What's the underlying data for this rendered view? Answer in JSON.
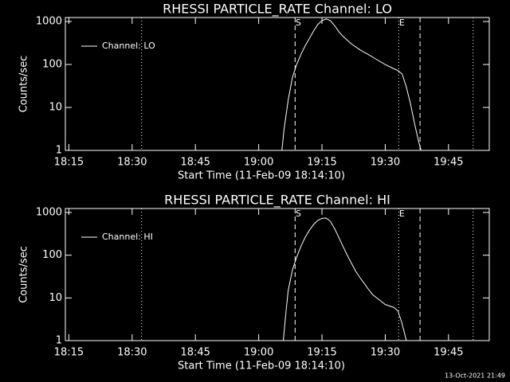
{
  "chart_data": [
    {
      "type": "line",
      "title": "RHESSI PARTICLE_RATE Channel: LO",
      "xlabel": "Start Time (11-Feb-09 18:14:10)",
      "ylabel": "Counts/sec",
      "log_y": true,
      "xlim": [
        "18:14:10",
        "19:54:40"
      ],
      "ylim": [
        1,
        1240
      ],
      "xticks": [
        "18:15",
        "18:30",
        "18:45",
        "19:00",
        "19:15",
        "19:30",
        "19:45"
      ],
      "yticks": [
        1,
        10,
        100,
        1000
      ],
      "legend": "top-left",
      "vlines": [
        {
          "x": "18:32:15",
          "style": "dotted"
        },
        {
          "x": "19:08:38",
          "style": "dashed"
        },
        {
          "x": "19:33:12",
          "style": "dotted"
        },
        {
          "x": "19:38:15",
          "style": "dashed"
        },
        {
          "x": "19:50:50",
          "style": "dotted"
        }
      ],
      "annotations": [
        {
          "text": "S",
          "x": "19:08:38"
        },
        {
          "text": "E",
          "x": "19:33:12"
        }
      ],
      "series": [
        {
          "name": "Channel: LO",
          "color": "#ffffff",
          "x": [
            "19:05:30",
            "19:06:00",
            "19:07:00",
            "19:08:00",
            "19:09:00",
            "19:10:00",
            "19:11:00",
            "19:12:00",
            "19:13:00",
            "19:14:00",
            "19:15:00",
            "19:16:00",
            "19:17:00",
            "19:18:00",
            "19:19:00",
            "19:20:00",
            "19:22:00",
            "19:24:00",
            "19:26:00",
            "19:28:00",
            "19:30:00",
            "19:32:00",
            "19:33:00",
            "19:34:00",
            "19:35:00",
            "19:36:00",
            "19:37:00",
            "19:38:00",
            "19:38:30"
          ],
          "values": [
            1,
            3,
            15,
            50,
            100,
            170,
            270,
            400,
            600,
            850,
            1050,
            1150,
            1050,
            800,
            580,
            450,
            300,
            220,
            170,
            130,
            100,
            80,
            72,
            60,
            30,
            12,
            4,
            1.5,
            1
          ]
        }
      ]
    },
    {
      "type": "line",
      "title": "RHESSI PARTICLE_RATE Channel: HI",
      "xlabel": "Start Time (11-Feb-09 18:14:10)",
      "ylabel": "Counts/sec",
      "log_y": true,
      "xlim": [
        "18:14:10",
        "19:54:40"
      ],
      "ylim": [
        1,
        1240
      ],
      "xticks": [
        "18:15",
        "18:30",
        "18:45",
        "19:00",
        "19:15",
        "19:30",
        "19:45"
      ],
      "yticks": [
        1,
        10,
        100,
        1000
      ],
      "legend": "top-left",
      "vlines": [
        {
          "x": "18:32:15",
          "style": "dotted"
        },
        {
          "x": "19:08:38",
          "style": "dashed"
        },
        {
          "x": "19:33:12",
          "style": "dotted"
        },
        {
          "x": "19:38:15",
          "style": "dashed"
        },
        {
          "x": "19:50:50",
          "style": "dotted"
        }
      ],
      "annotations": [
        {
          "text": "S",
          "x": "19:08:38"
        },
        {
          "text": "E",
          "x": "19:33:12"
        }
      ],
      "series": [
        {
          "name": "Channel: HI",
          "color": "#ffffff",
          "x": [
            "19:05:50",
            "19:06:30",
            "19:07:00",
            "19:08:00",
            "19:09:00",
            "19:10:00",
            "19:11:00",
            "19:12:00",
            "19:13:00",
            "19:14:00",
            "19:15:00",
            "19:16:00",
            "19:17:00",
            "19:18:00",
            "19:19:00",
            "19:20:00",
            "19:21:00",
            "19:22:00",
            "19:23:00",
            "19:24:00",
            "19:25:00",
            "19:26:00",
            "19:27:00",
            "19:28:00",
            "19:30:00",
            "19:32:00",
            "19:33:00",
            "19:34:00",
            "19:35:00"
          ],
          "values": [
            1,
            5,
            15,
            45,
            90,
            160,
            260,
            380,
            520,
            650,
            730,
            740,
            620,
            420,
            260,
            160,
            100,
            65,
            42,
            30,
            22,
            16,
            12,
            10,
            7,
            6,
            5,
            2.5,
            1
          ]
        }
      ]
    }
  ],
  "footer": "13-Oct-2021 21:49"
}
